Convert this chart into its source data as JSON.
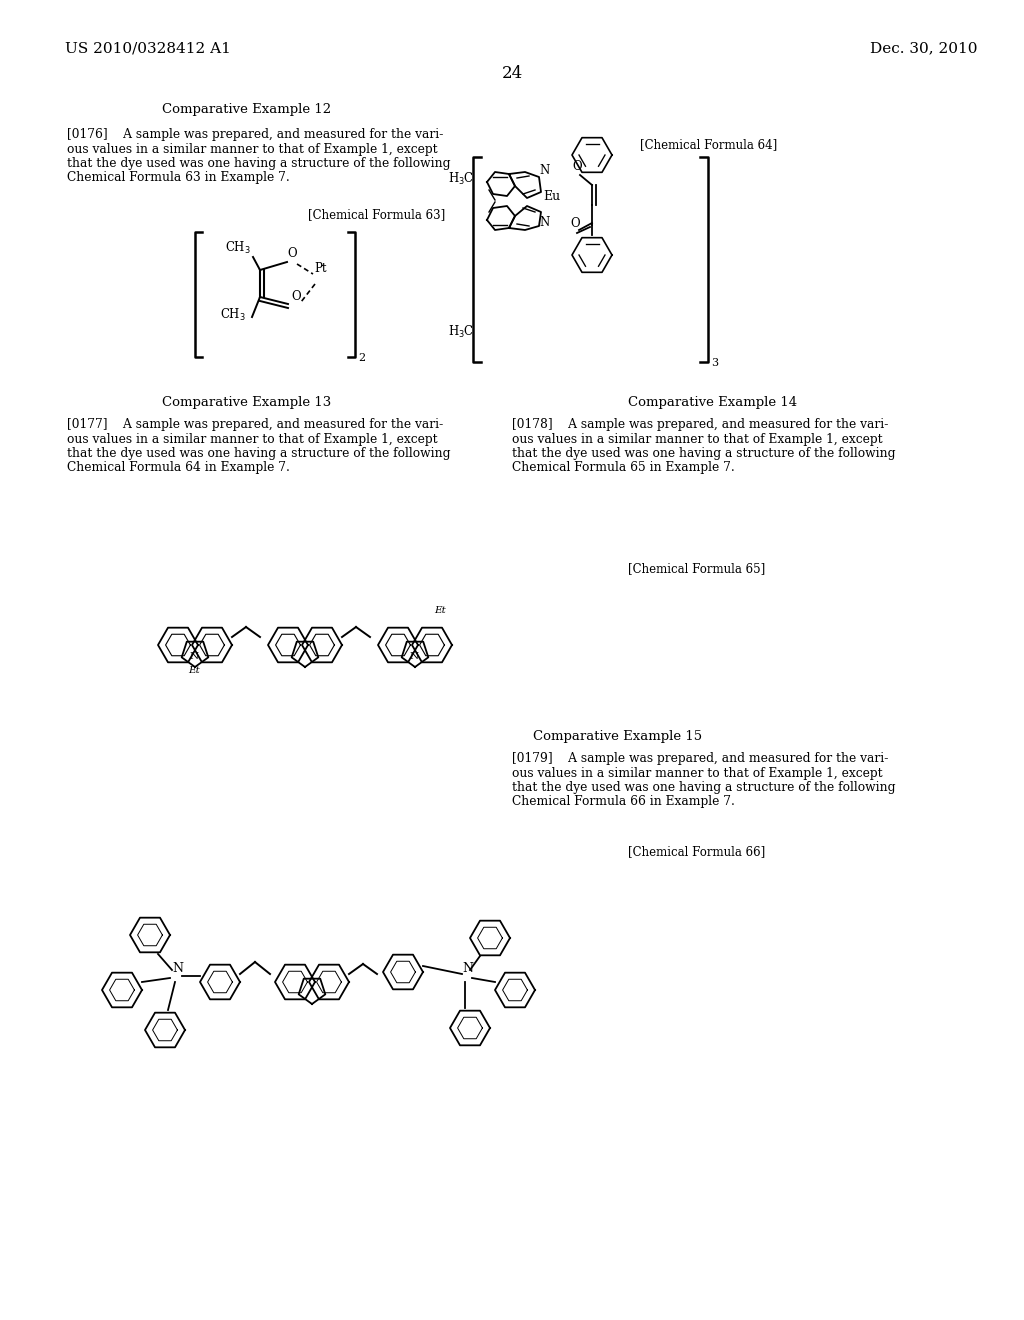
{
  "bg_color": "#ffffff",
  "header_left": "US 2010/0328412 A1",
  "header_right": "Dec. 30, 2010",
  "page_number": "24"
}
